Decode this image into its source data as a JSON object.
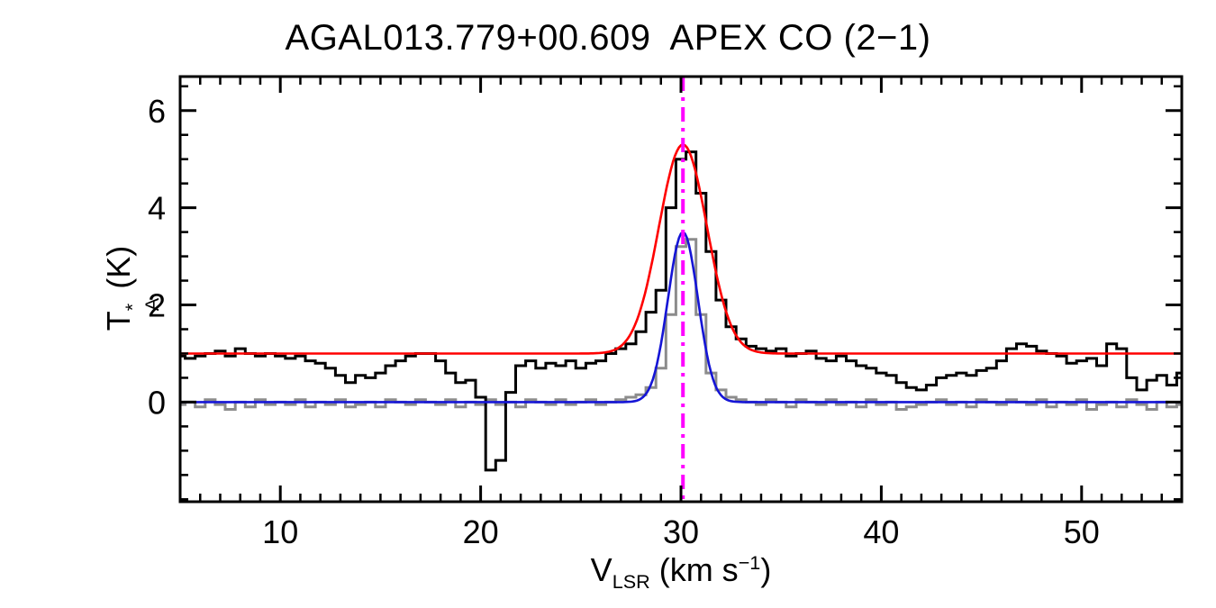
{
  "chart_data": {
    "type": "line",
    "title": "AGAL013.779+00.609  APEX CO (2−1)",
    "xlabel_parts": {
      "symbol": "V",
      "sub": "LSR",
      "unit_open": " (km s",
      "sup": "−1",
      "unit_close": ")"
    },
    "ylabel_parts": {
      "letter": "T",
      "sup": "*",
      "sub": "A",
      "unit": " (K)"
    },
    "xlim": [
      5,
      55
    ],
    "ylim": [
      -2.05,
      6.7
    ],
    "xticks": [
      10,
      20,
      30,
      40,
      50
    ],
    "yticks": [
      0,
      2,
      4,
      6
    ],
    "x_minor_step": 1,
    "y_minor_step": 0.5,
    "grid": false,
    "legend": "none",
    "x": [
      5,
      5.5,
      6,
      6.5,
      7,
      7.5,
      8,
      8.5,
      9,
      9.5,
      10,
      10.5,
      11,
      11.5,
      12,
      12.5,
      13,
      13.5,
      14,
      14.5,
      15,
      15.5,
      16,
      16.5,
      17,
      17.5,
      18,
      18.5,
      19,
      19.5,
      20,
      20.5,
      21,
      21.5,
      22,
      22.5,
      23,
      23.5,
      24,
      24.5,
      25,
      25.5,
      26,
      26.5,
      27,
      27.5,
      28,
      28.5,
      29,
      29.5,
      30,
      30.5,
      31,
      31.5,
      32,
      32.5,
      33,
      33.5,
      34,
      34.5,
      35,
      35.5,
      36,
      36.5,
      37,
      37.5,
      38,
      38.5,
      39,
      39.5,
      40,
      40.5,
      41,
      41.5,
      42,
      42.5,
      43,
      43.5,
      44,
      44.5,
      45,
      45.5,
      46,
      46.5,
      47,
      47.5,
      48,
      48.5,
      49,
      49.5,
      50,
      50.5,
      51,
      51.5,
      52,
      52.5,
      53,
      53.5,
      54,
      54.5,
      55
    ],
    "series": [
      {
        "name": "black-spectrum",
        "description": "CO (2-1) spectrum offset by +1 K",
        "style": "histogram",
        "color": "#000000",
        "values": [
          0.95,
          0.9,
          0.95,
          1,
          1.05,
          0.95,
          1.1,
          1,
          0.95,
          1,
          0.95,
          0.9,
          0.95,
          0.85,
          0.8,
          0.7,
          0.55,
          0.4,
          0.55,
          0.5,
          0.6,
          0.75,
          0.85,
          0.95,
          1,
          1,
          0.85,
          0.6,
          0.4,
          0.45,
          0.1,
          -1.4,
          -1.2,
          0.2,
          0.75,
          0.85,
          0.7,
          0.8,
          0.75,
          0.85,
          0.7,
          0.8,
          0.85,
          1,
          1.1,
          1.2,
          1.45,
          1.85,
          2.3,
          4,
          5,
          5.15,
          4.3,
          3.1,
          2.1,
          1.55,
          1.3,
          1.15,
          1.1,
          1.05,
          1.1,
          0.95,
          1,
          1.05,
          0.9,
          0.85,
          0.95,
          0.85,
          0.75,
          0.7,
          0.6,
          0.55,
          0.4,
          0.3,
          0.25,
          0.35,
          0.5,
          0.55,
          0.6,
          0.55,
          0.65,
          0.7,
          0.85,
          1.1,
          1.2,
          1.15,
          1.05,
          1,
          0.95,
          0.8,
          0.85,
          0.9,
          0.75,
          1.2,
          1.1,
          0.5,
          0.25,
          0.45,
          0.55,
          0.35,
          0.6
        ]
      },
      {
        "name": "gray-spectrum",
        "description": "second spectrum at zero baseline",
        "style": "histogram",
        "color": "#8c8c8c",
        "values": [
          -0.05,
          0,
          -0.1,
          0.05,
          -0.05,
          -0.15,
          0,
          -0.1,
          0.05,
          -0.05,
          0,
          -0.05,
          0.05,
          -0.1,
          0,
          -0.05,
          0.05,
          -0.1,
          -0.05,
          0,
          -0.1,
          0.05,
          0,
          -0.05,
          0.05,
          0,
          -0.05,
          0.05,
          -0.1,
          0,
          -0.05,
          0.05,
          -0.05,
          0,
          -0.1,
          0.05,
          0,
          -0.05,
          0.05,
          -0.05,
          0,
          0.05,
          -0.05,
          0,
          0.05,
          0.1,
          0.15,
          0.3,
          0.7,
          1.8,
          3.2,
          3.35,
          1.8,
          0.6,
          0.25,
          0.1,
          0.05,
          0,
          -0.05,
          0.05,
          0,
          -0.1,
          0.05,
          0,
          -0.05,
          0.05,
          -0.05,
          0,
          -0.1,
          0.05,
          -0.05,
          0,
          -0.15,
          -0.1,
          -0.05,
          0,
          0.05,
          -0.05,
          0,
          -0.1,
          0.05,
          0,
          -0.05,
          0.05,
          0,
          -0.05,
          0.05,
          -0.1,
          0,
          -0.05,
          0.05,
          -0.15,
          -0.05,
          0,
          -0.1,
          0.05,
          -0.05,
          -0.15,
          0,
          -0.1,
          -0.05
        ]
      }
    ],
    "fits": [
      {
        "name": "red-gaussian-fit",
        "color": "#ff0000",
        "baseline": 1.0,
        "amplitude": 4.3,
        "center": 30.1,
        "sigma": 1.2,
        "peak": 5.3
      },
      {
        "name": "blue-gaussian-fit",
        "color": "#1515d6",
        "baseline": 0.0,
        "amplitude": 3.5,
        "center": 30.1,
        "sigma": 0.75,
        "peak": 3.5
      }
    ],
    "vline": {
      "x": 30.1,
      "color": "#ff00ff",
      "style": "dash-dot"
    }
  }
}
